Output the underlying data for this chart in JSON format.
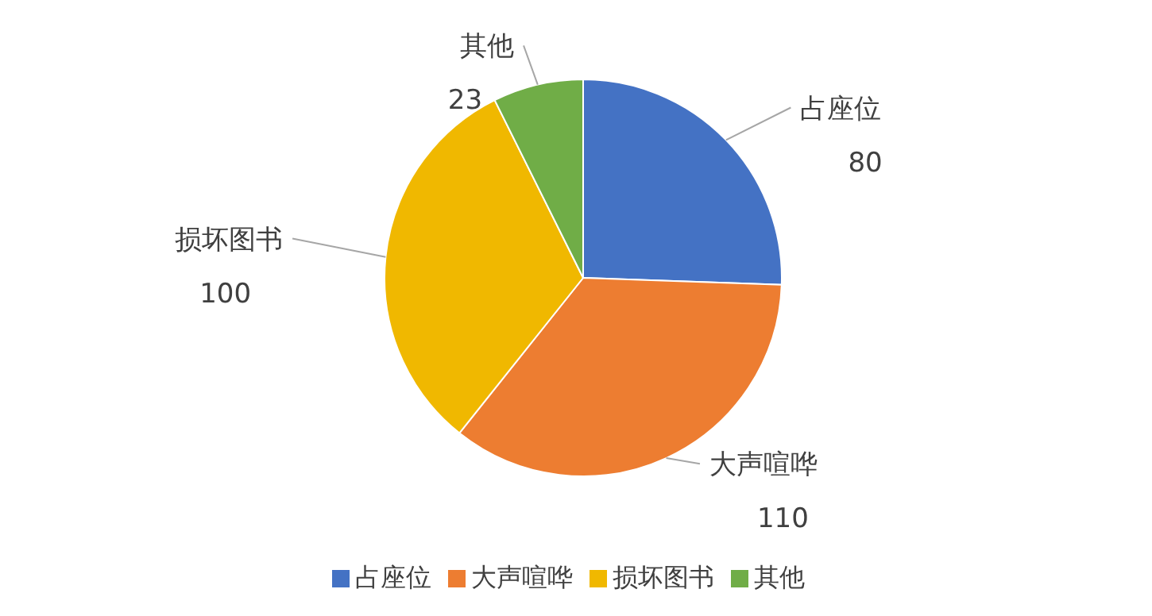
{
  "chart_data": {
    "type": "pie",
    "categories": [
      "占座位",
      "大声喧哗",
      "损坏图书",
      "其他"
    ],
    "values": [
      80,
      110,
      100,
      23
    ],
    "colors": [
      "#4472c4",
      "#ed7d31",
      "#f0b800",
      "#70ad47"
    ],
    "data_labels": true,
    "legend": "bottom"
  }
}
